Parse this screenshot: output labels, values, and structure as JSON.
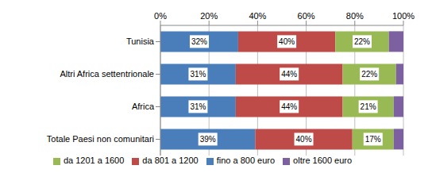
{
  "chart_data": {
    "type": "bar",
    "orientation": "horizontal",
    "stacked": true,
    "grid": true,
    "data_labels": true,
    "legend": "bottom",
    "categories": [
      "Tunisia",
      "Altri Africa settentrionale",
      "Africa",
      "Totale Paesi non comunitari"
    ],
    "xlim": [
      0,
      100
    ],
    "xticks": [
      {
        "value": 0,
        "label": "0%"
      },
      {
        "value": 20,
        "label": "20%"
      },
      {
        "value": 40,
        "label": "40%"
      },
      {
        "value": 60,
        "label": "60%"
      },
      {
        "value": 80,
        "label": "80%"
      },
      {
        "value": 100,
        "label": "100%"
      }
    ],
    "series": [
      {
        "name": "fino a 800 euro",
        "color": "#4a7ebb",
        "values": [
          32,
          31,
          31,
          39
        ],
        "value_labels": [
          "32%",
          "31%",
          "31%",
          "39%"
        ]
      },
      {
        "name": "da 801 a 1200",
        "color": "#be4b48",
        "values": [
          40,
          44,
          44,
          40
        ],
        "value_labels": [
          "40%",
          "44%",
          "44%",
          "40%"
        ]
      },
      {
        "name": "da 1201 a 1600",
        "color": "#98b954",
        "values": [
          22,
          22,
          21,
          17
        ],
        "value_labels": [
          "22%",
          "22%",
          "21%",
          "17%"
        ]
      },
      {
        "name": "oltre 1600 euro",
        "color": "#7d60a0",
        "values": [
          6,
          3,
          4,
          4
        ]
      }
    ]
  }
}
